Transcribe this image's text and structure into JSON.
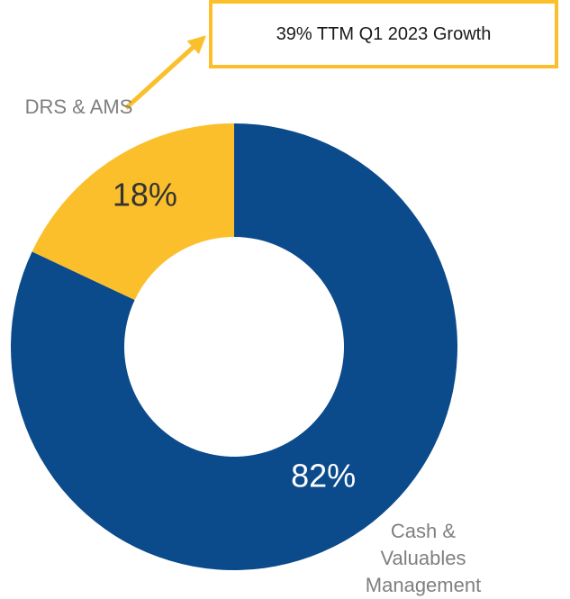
{
  "chart_data": {
    "type": "donut",
    "categories": [
      "Cash & Valuables Management",
      "DRS & AMS"
    ],
    "values": [
      82,
      18
    ],
    "value_labels": [
      "82%",
      "18%"
    ],
    "colors": [
      "#0b4a8b",
      "#fbbf2b"
    ],
    "annotation": "39% TTM Q1 2023 Growth"
  }
}
